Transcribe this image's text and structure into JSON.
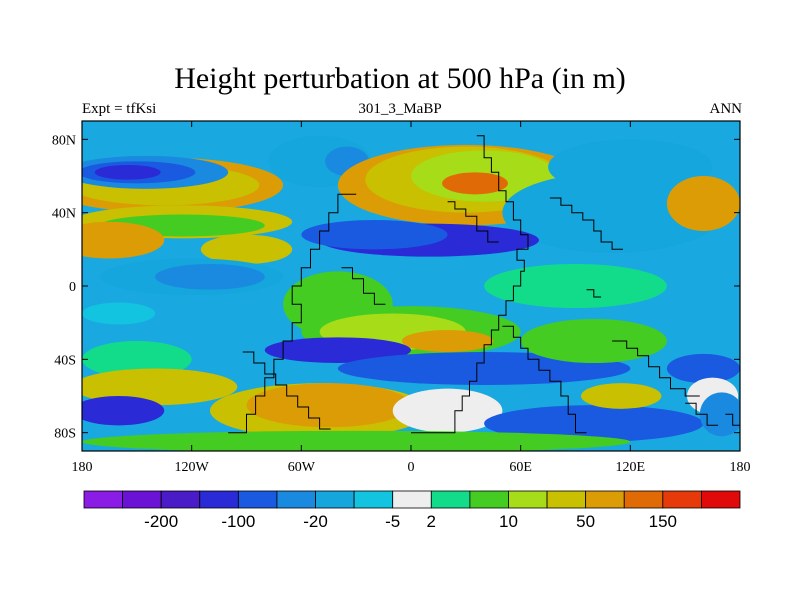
{
  "chart_data": {
    "type": "heatmap",
    "title": "Height perturbation at 500 hPa (in m)",
    "left_label": "Expt = tfKsi",
    "center_label": "301_3_MaBP",
    "right_label": "ANN",
    "x_ticks": [
      "180",
      "120W",
      "60W",
      "0",
      "60E",
      "120E",
      "180"
    ],
    "x_tick_values": [
      -180,
      -120,
      -60,
      0,
      60,
      120,
      180
    ],
    "y_ticks": [
      "80N",
      "40N",
      "0",
      "40S",
      "80S"
    ],
    "y_tick_values": [
      80,
      40,
      0,
      -40,
      -80
    ],
    "xlim": [
      -180,
      180
    ],
    "ylim": [
      -90,
      90
    ],
    "colorbar": {
      "colors": [
        "#8a1ce6",
        "#6a12d6",
        "#4a1cc8",
        "#2a2ad6",
        "#1a5ae0",
        "#1a8ae0",
        "#14a6dc",
        "#12c4e0",
        "#eeeeee",
        "#12dc8a",
        "#44cc22",
        "#a6dc18",
        "#c8c000",
        "#dc9c06",
        "#e06a06",
        "#e63a0a",
        "#e00a0a"
      ],
      "labels": [
        "-200",
        "-100",
        "-20",
        "-5",
        "2",
        "10",
        "50",
        "150"
      ],
      "label_after_box": [
        1,
        3,
        5,
        7,
        8,
        10,
        12,
        14
      ]
    },
    "blobs": [
      {
        "c": 13,
        "lon": -135,
        "lat": 55,
        "rx": 65,
        "ry": 15
      },
      {
        "c": 12,
        "lon": -135,
        "lat": 55,
        "rx": 52,
        "ry": 11
      },
      {
        "c": 5,
        "lon": -145,
        "lat": 62,
        "rx": 45,
        "ry": 9
      },
      {
        "c": 4,
        "lon": -150,
        "lat": 62,
        "rx": 32,
        "ry": 6
      },
      {
        "c": 3,
        "lon": -155,
        "lat": 62,
        "rx": 18,
        "ry": 4
      },
      {
        "c": 12,
        "lon": -125,
        "lat": 35,
        "rx": 60,
        "ry": 9
      },
      {
        "c": 10,
        "lon": -125,
        "lat": 33,
        "rx": 45,
        "ry": 6
      },
      {
        "c": 13,
        "lon": -165,
        "lat": 25,
        "rx": 30,
        "ry": 10
      },
      {
        "c": 6,
        "lon": -50,
        "lat": 68,
        "rx": 28,
        "ry": 14
      },
      {
        "c": 5,
        "lon": -35,
        "lat": 68,
        "rx": 12,
        "ry": 8
      },
      {
        "c": 13,
        "lon": 30,
        "lat": 55,
        "rx": 70,
        "ry": 22
      },
      {
        "c": 12,
        "lon": 30,
        "lat": 58,
        "rx": 55,
        "ry": 18
      },
      {
        "c": 11,
        "lon": 40,
        "lat": 60,
        "rx": 40,
        "ry": 14
      },
      {
        "c": 14,
        "lon": 35,
        "lat": 56,
        "rx": 18,
        "ry": 6
      },
      {
        "c": 6,
        "lon": 110,
        "lat": 40,
        "rx": 60,
        "ry": 22
      },
      {
        "c": 6,
        "lon": 120,
        "lat": 65,
        "rx": 45,
        "ry": 15
      },
      {
        "c": 13,
        "lon": 160,
        "lat": 45,
        "rx": 20,
        "ry": 15
      },
      {
        "c": 3,
        "lon": 10,
        "lat": 25,
        "rx": 60,
        "ry": 9
      },
      {
        "c": 4,
        "lon": -20,
        "lat": 28,
        "rx": 40,
        "ry": 8
      },
      {
        "c": 12,
        "lon": -90,
        "lat": 20,
        "rx": 25,
        "ry": 8
      },
      {
        "c": 6,
        "lon": -120,
        "lat": 5,
        "rx": 50,
        "ry": 10
      },
      {
        "c": 5,
        "lon": -110,
        "lat": 5,
        "rx": 30,
        "ry": 7
      },
      {
        "c": 7,
        "lon": -160,
        "lat": -15,
        "rx": 20,
        "ry": 6
      },
      {
        "c": 10,
        "lon": -40,
        "lat": -10,
        "rx": 30,
        "ry": 18
      },
      {
        "c": 10,
        "lon": 0,
        "lat": -25,
        "rx": 60,
        "ry": 14
      },
      {
        "c": 11,
        "lon": -10,
        "lat": -25,
        "rx": 40,
        "ry": 10
      },
      {
        "c": 13,
        "lon": 20,
        "lat": -30,
        "rx": 25,
        "ry": 6
      },
      {
        "c": 9,
        "lon": 90,
        "lat": 0,
        "rx": 50,
        "ry": 12
      },
      {
        "c": 9,
        "lon": -150,
        "lat": -40,
        "rx": 30,
        "ry": 10
      },
      {
        "c": 3,
        "lon": -40,
        "lat": -35,
        "rx": 40,
        "ry": 7
      },
      {
        "c": 4,
        "lon": 40,
        "lat": -45,
        "rx": 80,
        "ry": 9
      },
      {
        "c": 4,
        "lon": 160,
        "lat": -45,
        "rx": 20,
        "ry": 8
      },
      {
        "c": 10,
        "lon": 100,
        "lat": -30,
        "rx": 40,
        "ry": 12
      },
      {
        "c": 12,
        "lon": -140,
        "lat": -55,
        "rx": 45,
        "ry": 10
      },
      {
        "c": 3,
        "lon": -160,
        "lat": -68,
        "rx": 25,
        "ry": 8
      },
      {
        "c": 12,
        "lon": -50,
        "lat": -68,
        "rx": 60,
        "ry": 15
      },
      {
        "c": 13,
        "lon": -45,
        "lat": -65,
        "rx": 45,
        "ry": 12
      },
      {
        "c": 8,
        "lon": 20,
        "lat": -68,
        "rx": 30,
        "ry": 12
      },
      {
        "c": 4,
        "lon": 100,
        "lat": -75,
        "rx": 60,
        "ry": 10
      },
      {
        "c": 12,
        "lon": 115,
        "lat": -60,
        "rx": 22,
        "ry": 7
      },
      {
        "c": 8,
        "lon": 165,
        "lat": -60,
        "rx": 14,
        "ry": 10
      },
      {
        "c": 5,
        "lon": 170,
        "lat": -70,
        "rx": 12,
        "ry": 12
      },
      {
        "c": 10,
        "lon": -30,
        "lat": -85,
        "rx": 150,
        "ry": 6
      }
    ],
    "grid_lines": [
      {
        "lat": [
          82,
          82,
          70,
          70,
          62,
          62,
          52,
          52,
          46,
          46,
          36,
          36,
          28,
          28,
          20,
          20,
          14,
          14,
          8,
          8,
          0,
          0,
          -8,
          -8,
          -16,
          -16,
          -24,
          -24,
          -32,
          -32,
          -42,
          -42,
          -52,
          -52,
          -60,
          -60,
          -68,
          -68,
          -80,
          -80
        ],
        "lon": [
          36,
          40,
          40,
          44,
          44,
          48,
          48,
          52,
          52,
          56,
          56,
          60,
          60,
          64,
          64,
          58,
          58,
          62,
          62,
          60,
          60,
          56,
          56,
          52,
          52,
          48,
          48,
          44,
          44,
          40,
          40,
          36,
          36,
          32,
          32,
          28,
          28,
          24,
          24,
          0
        ]
      },
      {
        "lat": [
          50,
          50,
          40,
          40,
          30,
          30,
          20,
          20,
          10,
          10,
          0,
          0,
          -10,
          -10,
          -20,
          -20,
          -30,
          -30,
          -40,
          -40,
          -50,
          -50,
          -60,
          -60,
          -70,
          -70,
          -80,
          -80
        ],
        "lon": [
          -30,
          -40,
          -40,
          -45,
          -45,
          -50,
          -50,
          -55,
          -55,
          -60,
          -60,
          -65,
          -65,
          -60,
          -60,
          -65,
          -65,
          -70,
          -70,
          -75,
          -75,
          -80,
          -80,
          -85,
          -85,
          -90,
          -90,
          -100
        ]
      },
      {
        "lat": [
          46,
          46,
          42,
          42,
          38,
          38,
          30,
          30,
          24,
          24
        ],
        "lon": [
          20,
          24,
          24,
          30,
          30,
          36,
          36,
          42,
          42,
          48
        ]
      },
      {
        "lat": [
          48,
          48,
          44,
          44,
          40,
          40,
          36,
          36,
          30,
          30,
          24,
          24,
          20,
          20
        ],
        "lon": [
          76,
          82,
          82,
          88,
          88,
          94,
          94,
          100,
          100,
          104,
          104,
          110,
          110,
          116
        ]
      },
      {
        "lat": [
          -30,
          -30,
          -34,
          -34,
          -38,
          -38,
          -44,
          -44,
          -50,
          -50,
          -56,
          -56,
          -60,
          -60
        ],
        "lon": [
          110,
          118,
          118,
          124,
          124,
          130,
          130,
          136,
          136,
          142,
          142,
          150,
          150,
          158
        ]
      },
      {
        "lat": [
          -22,
          -22,
          -28,
          -28,
          -34,
          -34,
          -40,
          -40,
          -46,
          -46,
          -52,
          -52,
          -60,
          -60,
          -70,
          -70,
          -80,
          -80
        ],
        "lon": [
          50,
          56,
          56,
          60,
          60,
          64,
          64,
          70,
          70,
          76,
          76,
          82,
          82,
          86,
          86,
          90,
          90,
          96
        ]
      },
      {
        "lat": [
          -36,
          -36,
          -42,
          -42,
          -48,
          -48,
          -54,
          -54,
          -60,
          -60,
          -66,
          -66,
          -72,
          -72,
          -78,
          -78
        ],
        "lon": [
          -92,
          -86,
          -86,
          -80,
          -80,
          -74,
          -74,
          -68,
          -68,
          -62,
          -62,
          -56,
          -56,
          -50,
          -50,
          -44
        ]
      },
      {
        "lat": [
          10,
          10,
          4,
          4,
          -4,
          -4,
          -10,
          -10
        ],
        "lon": [
          -38,
          -32,
          -32,
          -26,
          -26,
          -20,
          -20,
          -14
        ]
      },
      {
        "lat": [
          -2,
          -2,
          -6,
          -6
        ],
        "lon": [
          96,
          100,
          100,
          104
        ]
      },
      {
        "lat": [
          -64,
          -64,
          -70,
          -70,
          -76,
          -76
        ],
        "lon": [
          150,
          156,
          156,
          162,
          162,
          168
        ]
      },
      {
        "lat": [
          -70,
          -70,
          -76,
          -76
        ],
        "lon": [
          172,
          176,
          176,
          180
        ]
      }
    ]
  }
}
